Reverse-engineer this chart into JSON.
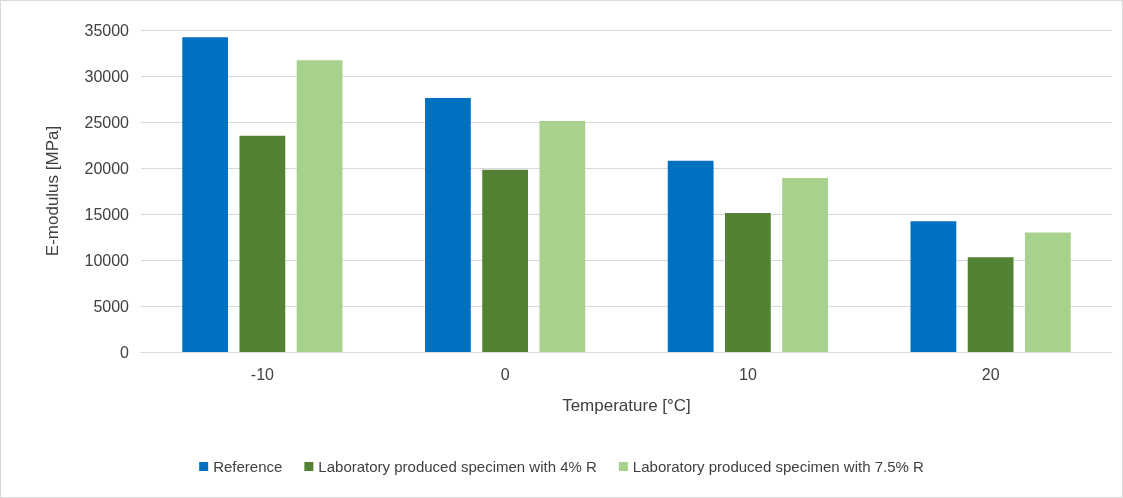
{
  "chart_data": {
    "type": "bar",
    "xlabel": "Temperature [°C]",
    "ylabel": "E-modulus [MPa]",
    "categories": [
      "-10",
      "0",
      "10",
      "20"
    ],
    "series": [
      {
        "name": "Reference",
        "color": "#0070c0",
        "values": [
          34200,
          27600,
          20800,
          14200
        ]
      },
      {
        "name": "Laboratory produced specimen with 4% R",
        "color": "#548235",
        "values": [
          23500,
          19800,
          15100,
          10300
        ]
      },
      {
        "name": "Laboratory produced specimen with 7.5% R",
        "color": "#a9d18e",
        "values": [
          31700,
          25100,
          18900,
          13000
        ]
      }
    ],
    "ylim": [
      0,
      35000
    ],
    "yticks": [
      0,
      5000,
      10000,
      15000,
      20000,
      25000,
      30000,
      35000
    ],
    "grid": "y",
    "legend": "bottom"
  }
}
